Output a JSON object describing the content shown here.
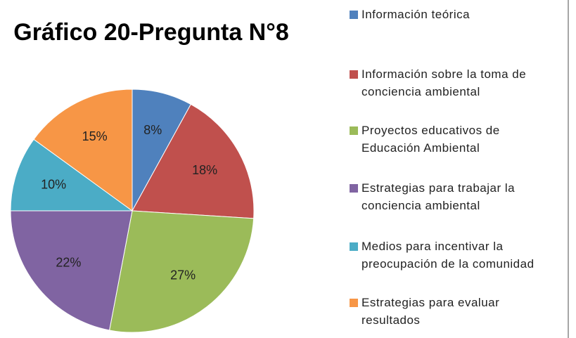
{
  "chart_data": {
    "type": "pie",
    "title": "Gráfico 20-Pregunta N°8",
    "categories": [
      "Información teórica",
      "Información sobre la toma de conciencia ambiental",
      "Proyectos educativos de Educación Ambiental",
      "Estrategias para trabajar la conciencia ambiental",
      "Medios para incentivar la preocupación de la comunidad",
      "Estrategias para evaluar resultados"
    ],
    "values": [
      8,
      18,
      27,
      22,
      10,
      15
    ],
    "value_labels": [
      "8%",
      "18%",
      "27%",
      "22%",
      "10%",
      "15%"
    ],
    "colors": [
      "#4f81bd",
      "#c0504d",
      "#9bbb59",
      "#8064a2",
      "#4bacc6",
      "#f79646"
    ],
    "legend": "right"
  }
}
